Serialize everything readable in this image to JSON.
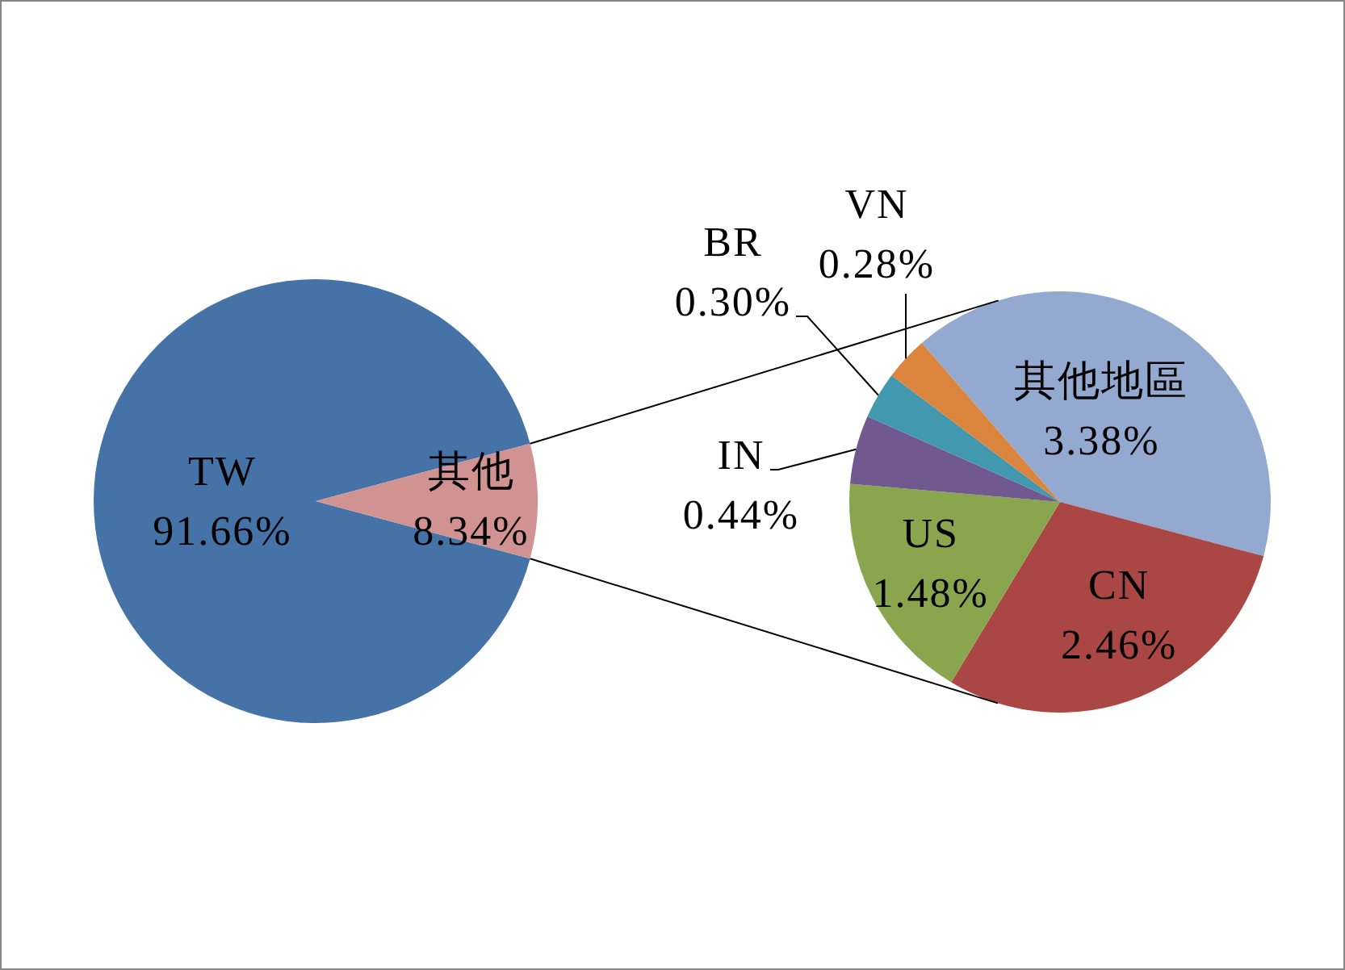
{
  "chart_data": [
    {
      "type": "pie",
      "categories": [
        "TW",
        "其他"
      ],
      "values": [
        91.66,
        8.34
      ],
      "colors": [
        "#4572a7",
        "#d19392"
      ],
      "value_labels": [
        "91.66%",
        "8.34%"
      ]
    },
    {
      "type": "pie",
      "categories": [
        "其他地區",
        "CN",
        "US",
        "IN",
        "BR",
        "VN"
      ],
      "values": [
        3.38,
        2.46,
        1.48,
        0.44,
        0.3,
        0.28
      ],
      "colors": [
        "#93a9cf",
        "#aa4643",
        "#89a54e",
        "#71588f",
        "#4198af",
        "#db843d"
      ],
      "value_labels": [
        "3.38%",
        "2.46%",
        "1.48%",
        "0.44%",
        "0.30%",
        "0.28%"
      ]
    }
  ]
}
